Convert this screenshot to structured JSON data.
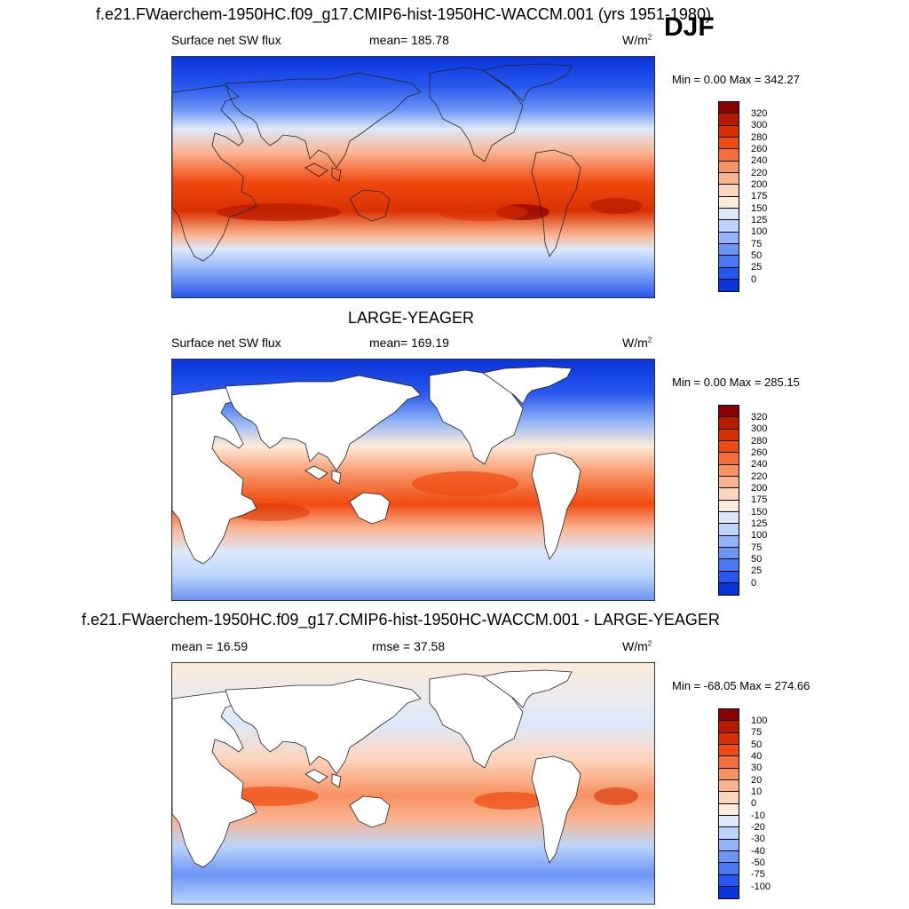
{
  "case_title": "f.e21.FWaerchem-1950HC.f09_g17.CMIP6-hist-1950HC-WACCM.001 (yrs 1951-1980)",
  "season": "DJF",
  "panels": [
    {
      "id": "model",
      "variable": "Surface net SW flux",
      "stat": "mean= 185.78",
      "units_base": "W/m",
      "units_exp": "2",
      "minmax": "Min =   0.00 Max = 342.27",
      "levels": [
        "320",
        "300",
        "280",
        "260",
        "240",
        "220",
        "200",
        "175",
        "150",
        "125",
        "100",
        "75",
        "50",
        "25",
        "0"
      ],
      "colors": [
        "#8b0000",
        "#b81a00",
        "#d93000",
        "#f04a10",
        "#f46d3a",
        "#f79263",
        "#fab38f",
        "#fdd5bd",
        "#fdebd9",
        "#dde9fb",
        "#bcd4fb",
        "#93b5f7",
        "#6b95f4",
        "#4a78f2",
        "#2757ee",
        "#0a34db",
        "#0018a8"
      ]
    },
    {
      "id": "obs",
      "panel_title": "LARGE-YEAGER",
      "variable": "Surface net SW flux",
      "stat": "mean= 169.19",
      "units_base": "W/m",
      "units_exp": "2",
      "minmax": "Min =   0.00 Max = 285.15",
      "levels": [
        "320",
        "300",
        "280",
        "260",
        "240",
        "220",
        "200",
        "175",
        "150",
        "125",
        "100",
        "75",
        "50",
        "25",
        "0"
      ],
      "colors": [
        "#8b0000",
        "#b81a00",
        "#d93000",
        "#f04a10",
        "#f46d3a",
        "#f79263",
        "#fab38f",
        "#fdd5bd",
        "#fdebd9",
        "#dde9fb",
        "#bcd4fb",
        "#93b5f7",
        "#6b95f4",
        "#4a78f2",
        "#2757ee",
        "#0a34db",
        "#0018a8"
      ]
    },
    {
      "id": "diff",
      "panel_title": "f.e21.FWaerchem-1950HC.f09_g17.CMIP6-hist-1950HC-WACCM.001 - LARGE-YEAGER",
      "stat": "mean =  16.59",
      "stat2": "rmse =  37.58",
      "units_base": "W/m",
      "units_exp": "2",
      "minmax": "Min = -68.05 Max = 274.66",
      "levels": [
        "100",
        "75",
        "50",
        "40",
        "30",
        "20",
        "10",
        "0",
        "-10",
        "-20",
        "-30",
        "-40",
        "-50",
        "-75",
        "-100"
      ],
      "colors": [
        "#8b0000",
        "#b81a00",
        "#d93000",
        "#f04a10",
        "#f46d3a",
        "#f79263",
        "#fab38f",
        "#fdd5bd",
        "#fdebd9",
        "#dde9fb",
        "#bcd4fb",
        "#93b5f7",
        "#6b95f4",
        "#4a78f2",
        "#2757ee",
        "#0a34db",
        "#0018a8"
      ]
    }
  ]
}
